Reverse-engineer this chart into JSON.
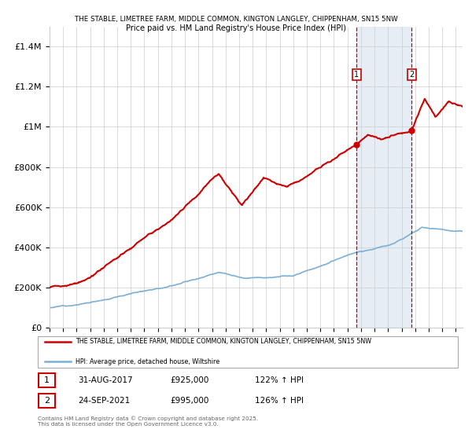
{
  "title1": "THE STABLE, LIMETREE FARM, MIDDLE COMMON, KINGTON LANGLEY, CHIPPENHAM, SN15 5NW",
  "title2": "Price paid vs. HM Land Registry's House Price Index (HPI)",
  "ylim": [
    0,
    1500000
  ],
  "xlim_start": 1995.0,
  "xlim_end": 2025.5,
  "yticks": [
    0,
    200000,
    400000,
    600000,
    800000,
    1000000,
    1200000,
    1400000
  ],
  "ytick_labels": [
    "£0",
    "£200K",
    "£400K",
    "£600K",
    "£800K",
    "£1M",
    "£1.2M",
    "£1.4M"
  ],
  "transaction1_x": 2017.664,
  "transaction1_y": 925000,
  "transaction2_x": 2021.731,
  "transaction2_y": 995000,
  "transaction1_date": "31-AUG-2017",
  "transaction1_price": "£925,000",
  "transaction1_hpi": "122% ↑ HPI",
  "transaction2_date": "24-SEP-2021",
  "transaction2_price": "£995,000",
  "transaction2_hpi": "126% ↑ HPI",
  "red_line_color": "#cc0000",
  "blue_line_color": "#7bafd4",
  "background_shade_color": "#dce6f1",
  "grid_color": "#cccccc",
  "legend_label_red": "THE STABLE, LIMETREE FARM, MIDDLE COMMON, KINGTON LANGLEY, CHIPPENHAM, SN15 5NW",
  "legend_label_blue": "HPI: Average price, detached house, Wiltshire",
  "footer": "Contains HM Land Registry data © Crown copyright and database right 2025.\nThis data is licensed under the Open Government Licence v3.0."
}
